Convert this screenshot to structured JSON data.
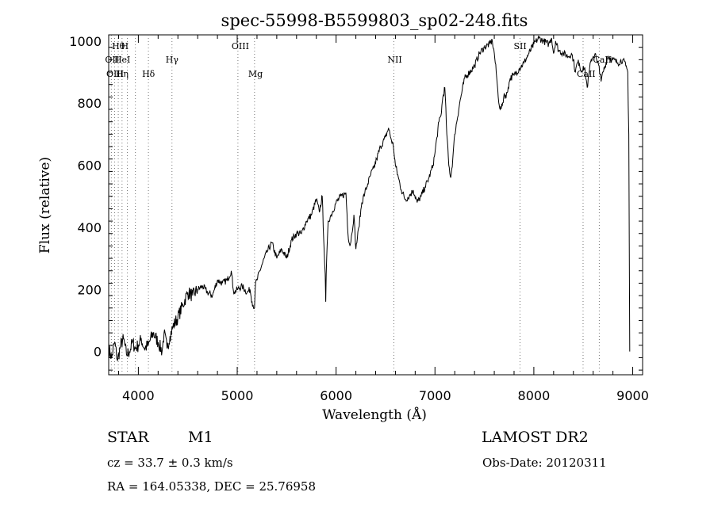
{
  "chart_data": {
    "type": "line",
    "title": "spec-55998-B5599803_sp02-248.fits",
    "xlabel": "Wavelength (Å)",
    "ylabel": "Flux (relative)",
    "xlim": [
      3700,
      9100
    ],
    "ylim": [
      -75,
      1020
    ],
    "xticks": [
      4000,
      5000,
      6000,
      7000,
      8000,
      9000
    ],
    "yticks": [
      0,
      200,
      400,
      600,
      800,
      1000
    ],
    "grid": false,
    "line_color": "#000000",
    "marker_color": "#777777",
    "series": [
      {
        "x": [
          3700,
          3730,
          3760,
          3790,
          3820,
          3850,
          3880,
          3910,
          3940,
          3970,
          4000,
          4030,
          4060,
          4100,
          4150,
          4200,
          4240,
          4260,
          4290,
          4320,
          4350,
          4400,
          4450,
          4500,
          4550,
          4600,
          4650,
          4700,
          4750,
          4800,
          4850,
          4900,
          4940,
          4960,
          4970,
          5000,
          5050,
          5100,
          5130,
          5150,
          5175,
          5185,
          5200,
          5250,
          5300,
          5350,
          5400,
          5450,
          5500,
          5550,
          5600,
          5650,
          5700,
          5750,
          5800,
          5830,
          5860,
          5880,
          5890,
          5895,
          5900,
          5920,
          5950,
          6000,
          6050,
          6100,
          6120,
          6140,
          6160,
          6180,
          6200,
          6230,
          6260,
          6290,
          6320,
          6350,
          6380,
          6410,
          6450,
          6500,
          6530,
          6560,
          6580,
          6600,
          6630,
          6660,
          6700,
          6740,
          6780,
          6820,
          6860,
          6900,
          6940,
          6980,
          7000,
          7020,
          7040,
          7060,
          7080,
          7100,
          7120,
          7140,
          7160,
          7180,
          7200,
          7250,
          7300,
          7350,
          7400,
          7450,
          7500,
          7550,
          7580,
          7600,
          7620,
          7640,
          7660,
          7680,
          7700,
          7720,
          7740,
          7760,
          7800,
          7850,
          7900,
          7950,
          8000,
          8050,
          8100,
          8150,
          8180,
          8200,
          8220,
          8250,
          8300,
          8350,
          8380,
          8400,
          8420,
          8440,
          8460,
          8480,
          8500,
          8520,
          8540,
          8560,
          8580,
          8600,
          8620,
          8640,
          8660,
          8680,
          8700,
          8750,
          8800,
          8850,
          8900,
          8930,
          8950,
          8960,
          8970
        ],
        "y": [
          10,
          -20,
          30,
          -30,
          20,
          40,
          -10,
          0,
          30,
          10,
          20,
          40,
          10,
          20,
          60,
          30,
          0,
          60,
          10,
          50,
          80,
          110,
          150,
          190,
          180,
          200,
          210,
          190,
          180,
          230,
          220,
          230,
          260,
          200,
          190,
          200,
          210,
          190,
          200,
          160,
          140,
          220,
          230,
          280,
          320,
          350,
          300,
          330,
          300,
          360,
          380,
          380,
          420,
          440,
          490,
          450,
          500,
          320,
          250,
          160,
          250,
          420,
          440,
          480,
          500,
          510,
          380,
          340,
          380,
          440,
          330,
          400,
          480,
          510,
          540,
          570,
          590,
          620,
          660,
          690,
          720,
          680,
          660,
          600,
          560,
          520,
          490,
          500,
          520,
          480,
          500,
          530,
          560,
          600,
          640,
          690,
          740,
          760,
          820,
          850,
          700,
          600,
          560,
          620,
          700,
          800,
          880,
          900,
          920,
          960,
          980,
          990,
          1000,
          960,
          900,
          820,
          780,
          790,
          830,
          820,
          850,
          880,
          890,
          910,
          930,
          960,
          990,
          1010,
          1000,
          990,
          1010,
          960,
          1000,
          970,
          960,
          950,
          960,
          940,
          900,
          930,
          930,
          900,
          920,
          900,
          850,
          900,
          940,
          950,
          960,
          930,
          920,
          870,
          900,
          950,
          940,
          930,
          940,
          920,
          900,
          700,
          0
        ]
      }
    ],
    "line_markers": [
      {
        "label": "Hθ",
        "x": 3797,
        "row": 1
      },
      {
        "label": "H",
        "x": 3889,
        "row": 1
      },
      {
        "label": "OII",
        "x": 3727,
        "row": 2
      },
      {
        "label": "HeI",
        "x": 3820,
        "row": 2
      },
      {
        "label": "Hγ",
        "x": 4340,
        "row": 2
      },
      {
        "label": "OIII",
        "x": 3740,
        "row": 3
      },
      {
        "label": "Hη",
        "x": 3835,
        "row": 3
      },
      {
        "label": "Hδ",
        "x": 4102,
        "row": 3
      },
      {
        "label": "OIII",
        "x": 5007,
        "row": 1
      },
      {
        "label": "Mg",
        "x": 5175,
        "row": 3
      },
      {
        "label": "NII",
        "x": 6584,
        "row": 2
      },
      {
        "label": "SII",
        "x": 7860,
        "row": 1
      },
      {
        "label": "CaII",
        "x": 8662,
        "row": 2
      },
      {
        "label": "CaII",
        "x": 8498,
        "row": 3
      }
    ],
    "marker_lines_x": [
      3727,
      3760,
      3797,
      3835,
      3889,
      3970,
      4102,
      4340,
      5007,
      5175,
      6584,
      7860,
      8498,
      8662
    ]
  },
  "info": {
    "class": "STAR",
    "subclass": "M1",
    "survey": "LAMOST  DR2",
    "cz": "cz = 33.7 ± 0.3 km/s",
    "obsdate": "Obs-Date: 20120311",
    "radec": "RA = 164.05338, DEC =  25.76958"
  }
}
